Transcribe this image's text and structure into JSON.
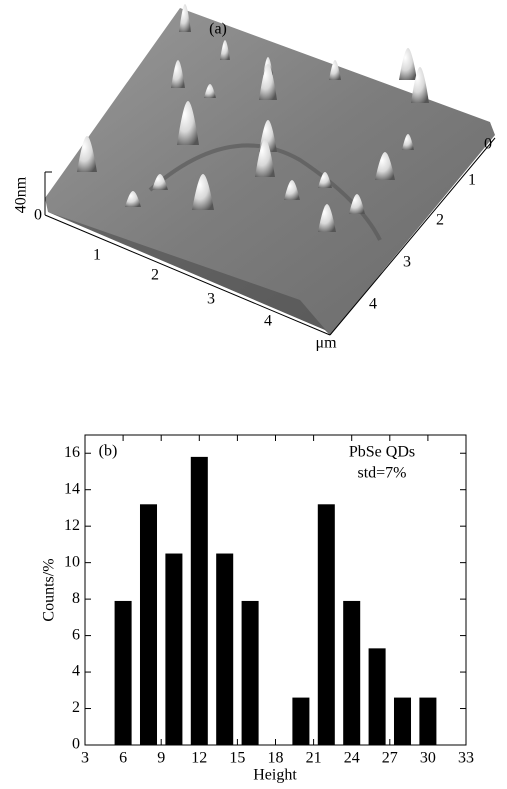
{
  "afm_image": {
    "label": "(a)",
    "z_scale_label": "40nm",
    "z_zero_label": "0",
    "x_tick_labels": [
      "1",
      "2",
      "3",
      "4"
    ],
    "y_tick_labels": [
      "0",
      "1",
      "2",
      "3",
      "4"
    ],
    "unit_label": "μm"
  },
  "chart_data": {
    "type": "bar",
    "panel_label": "(b)",
    "annotations": [
      "PbSe QDs",
      "std=7%"
    ],
    "x_label": "Height",
    "y_label": "Counts/%",
    "x": [
      6,
      8,
      10,
      12,
      14,
      16,
      18,
      20,
      22,
      24,
      26,
      28,
      30
    ],
    "values": [
      7.9,
      13.2,
      10.5,
      15.8,
      10.5,
      7.9,
      0,
      2.6,
      13.2,
      7.9,
      5.3,
      2.6,
      2.6
    ],
    "color": "#000000",
    "xlim": [
      3,
      33
    ],
    "xticks": [
      3,
      6,
      9,
      12,
      15,
      18,
      21,
      24,
      27,
      30,
      33
    ],
    "ylim": [
      0,
      17
    ],
    "yticks": [
      0,
      2,
      4,
      6,
      8,
      10,
      12,
      14,
      16
    ]
  }
}
